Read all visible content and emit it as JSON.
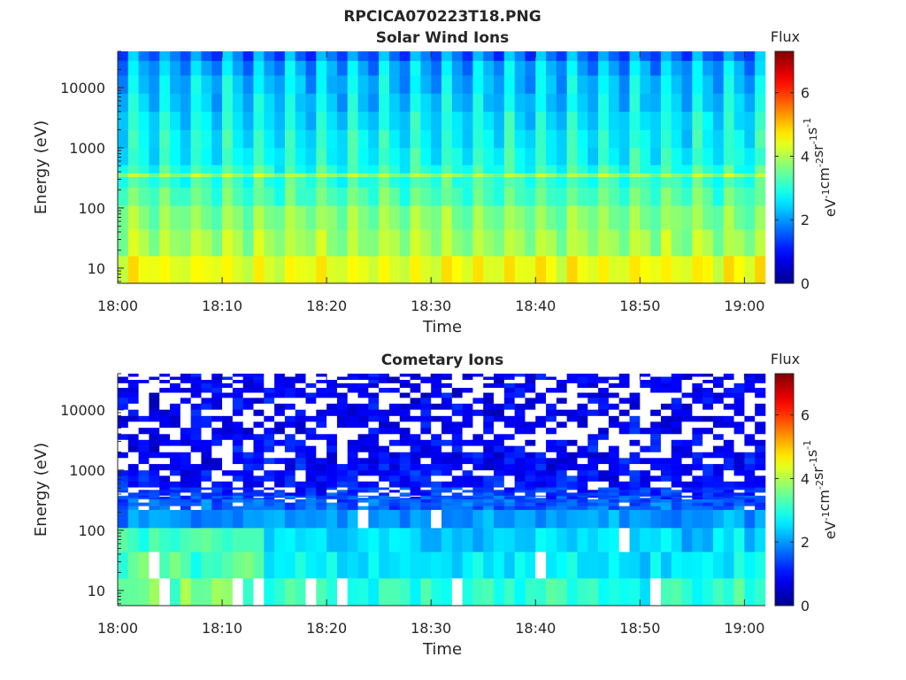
{
  "figure": {
    "title": "RPCICA070223T18.PNG"
  },
  "colormap": {
    "name": "jet",
    "stops": [
      "#00008f",
      "#0000ff",
      "#00ffff",
      "#ffff00",
      "#ff0000",
      "#800000"
    ]
  },
  "chart_data": [
    {
      "type": "heatmap",
      "title": "Solar Wind Ions",
      "xlabel": "Time",
      "ylabel": "Energy (eV)",
      "x_tick_labels": [
        "18:00",
        "18:10",
        "18:20",
        "18:30",
        "18:40",
        "18:50",
        "19:00"
      ],
      "x_ticks_minutes": [
        0,
        10,
        20,
        30,
        40,
        50,
        60
      ],
      "xlim_minutes": [
        0,
        62
      ],
      "y_scale": "log",
      "y_ticks": [
        10,
        100,
        1000,
        10000
      ],
      "y_tick_labels": [
        "10",
        "100",
        "1000",
        "10000"
      ],
      "ylim": [
        5.6,
        40000
      ],
      "colorbar": {
        "label": "Flux",
        "unit": "eV^-1 cm^-2 sr^-1 s^-1",
        "ticks": [
          0,
          2,
          4,
          6
        ],
        "range": [
          0,
          7.3
        ]
      },
      "time_step_minutes": 1,
      "energy_bin_edges": [
        5.6,
        16,
        44,
        110,
        220,
        330,
        380,
        520,
        1000,
        2000,
        4000,
        8000,
        16000,
        28000,
        40000
      ],
      "band_flux_levels": [
        4.4,
        3.8,
        3.6,
        3.2,
        3.0,
        3.7,
        2.9,
        2.7,
        2.6,
        2.5,
        2.3,
        2.2,
        2.0,
        1.6
      ],
      "column_pattern": "alternating brighter and darker time columns, ~every 3 minutes",
      "grid": false
    },
    {
      "type": "heatmap",
      "title": "Cometary Ions",
      "xlabel": "Time",
      "ylabel": "Energy (eV)",
      "x_tick_labels": [
        "18:00",
        "18:10",
        "18:20",
        "18:30",
        "18:40",
        "18:50",
        "19:00"
      ],
      "x_ticks_minutes": [
        0,
        10,
        20,
        30,
        40,
        50,
        60
      ],
      "xlim_minutes": [
        0,
        62
      ],
      "y_scale": "log",
      "y_ticks": [
        10,
        100,
        1000,
        10000
      ],
      "y_tick_labels": [
        "10",
        "100",
        "1000",
        "10000"
      ],
      "ylim": [
        5.6,
        40000
      ],
      "colorbar": {
        "label": "Flux",
        "unit": "eV^-1 cm^-2 sr^-1 s^-1",
        "ticks": [
          0,
          2,
          4,
          6
        ],
        "range": [
          0,
          7.3
        ]
      },
      "time_step_minutes": 1,
      "energy_bin_edges": [
        5.6,
        16,
        44,
        110,
        220,
        330,
        380,
        520,
        1000,
        2000,
        4000,
        8000,
        16000,
        28000,
        40000
      ],
      "band_flux_levels": [
        3.0,
        2.6,
        2.4,
        2.0,
        1.6,
        1.4,
        1.2,
        1.0,
        0.9,
        0.9,
        0.8,
        0.8,
        0.8,
        0.8
      ],
      "early_interval_minutes": [
        0,
        14
      ],
      "early_interval_low_energy_flux": 3.6,
      "missing_data": "white cells (no counts), frequent above ~300 eV",
      "grid": false
    }
  ]
}
